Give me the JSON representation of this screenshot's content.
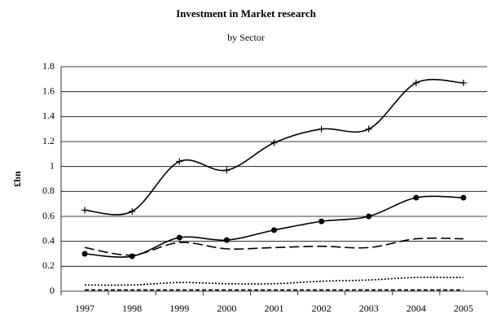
{
  "chart_data": {
    "type": "line",
    "title": "Investment in Market research",
    "subtitle": "by Sector",
    "y_label": "£bn",
    "categories": [
      "1997",
      "1998",
      "1999",
      "2000",
      "2001",
      "2002",
      "2003",
      "2004",
      "2005"
    ],
    "series": [
      {
        "color": "#000000",
        "marker": "plus",
        "dash": "solid",
        "values": [
          0.65,
          0.64,
          1.04,
          0.97,
          1.19,
          1.3,
          1.3,
          1.67,
          1.67
        ]
      },
      {
        "color": "#000000",
        "marker": "circle",
        "dash": "solid",
        "values": [
          0.3,
          0.28,
          0.43,
          0.41,
          0.49,
          0.56,
          0.6,
          0.75,
          0.75
        ]
      },
      {
        "color": "#000000",
        "marker": "none",
        "dash": "long",
        "values": [
          0.35,
          0.29,
          0.39,
          0.34,
          0.35,
          0.36,
          0.35,
          0.42,
          0.42
        ]
      },
      {
        "color": "#000000",
        "marker": "none",
        "dash": "dotted",
        "values": [
          0.05,
          0.05,
          0.07,
          0.06,
          0.06,
          0.08,
          0.09,
          0.11,
          0.11
        ]
      },
      {
        "color": "#000000",
        "marker": "none",
        "dash": "short",
        "values": [
          0.01,
          0.01,
          0.01,
          0.01,
          0.01,
          0.01,
          0.01,
          0.01,
          0.01
        ]
      }
    ],
    "ylim": [
      0,
      1.8
    ],
    "yticks": [
      0,
      0.2,
      0.4,
      0.6,
      0.8,
      1,
      1.2,
      1.4,
      1.6,
      1.8
    ],
    "grid": true,
    "smooth": true
  }
}
